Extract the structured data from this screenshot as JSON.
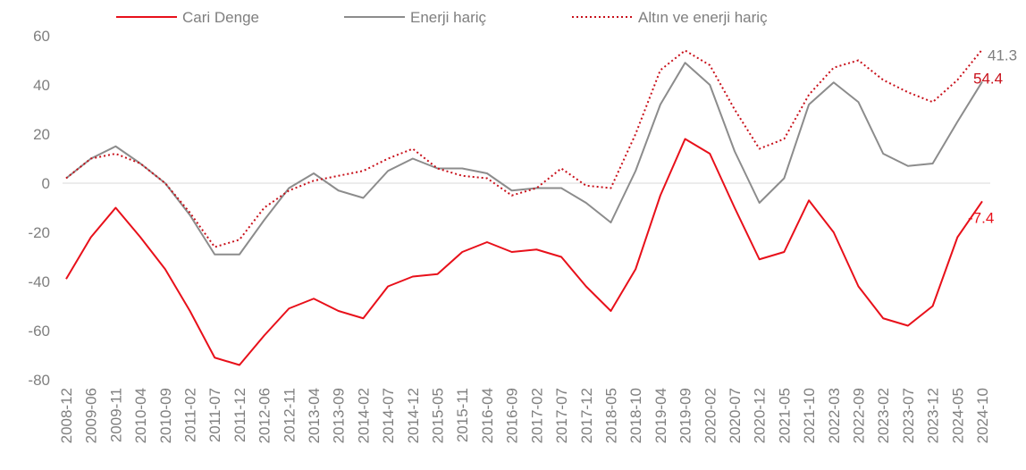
{
  "chart_data": {
    "type": "line",
    "categories": [
      "2008-12",
      "2009-06",
      "2009-11",
      "2010-04",
      "2010-09",
      "2011-02",
      "2011-07",
      "2011-12",
      "2012-06",
      "2012-11",
      "2013-04",
      "2013-09",
      "2014-02",
      "2014-07",
      "2014-12",
      "2015-05",
      "2015-11",
      "2016-04",
      "2016-09",
      "2017-02",
      "2017-07",
      "2017-12",
      "2018-05",
      "2018-10",
      "2019-04",
      "2019-09",
      "2020-02",
      "2020-07",
      "2020-12",
      "2021-05",
      "2021-10",
      "2022-03",
      "2022-09",
      "2023-02",
      "2023-07",
      "2023-12",
      "2024-05",
      "2024-10"
    ],
    "series": [
      {
        "name": "Cari Denge",
        "color": "#e8101a",
        "dash": "solid",
        "values": [
          -39,
          -22,
          -10,
          -22,
          -35,
          -52,
          -71,
          -74,
          -62,
          -51,
          -47,
          -52,
          -55,
          -42,
          -38,
          -37,
          -28,
          -24,
          -28,
          -27,
          -30,
          -42,
          -52,
          -35,
          -5,
          18,
          12,
          -10,
          -31,
          -28,
          -7,
          -20,
          -42,
          -55,
          -58,
          -50,
          -22,
          -7.4
        ]
      },
      {
        "name": "Enerji hariç",
        "color": "#8c8c8c",
        "dash": "solid",
        "values": [
          2,
          10,
          15,
          8,
          0,
          -13,
          -29,
          -29,
          -15,
          -2,
          4,
          -3,
          -6,
          5,
          10,
          6,
          6,
          4,
          -3,
          -2,
          -2,
          -8,
          -16,
          5,
          32,
          49,
          40,
          13,
          -8,
          2,
          32,
          41,
          33,
          12,
          7,
          8,
          25,
          41.3
        ]
      },
      {
        "name": "Altın ve enerji hariç",
        "color": "#c8101a",
        "dash": "dotted",
        "values": [
          2,
          10,
          12,
          8,
          0,
          -12,
          -26,
          -23,
          -10,
          -3,
          1,
          3,
          5,
          10,
          14,
          6,
          3,
          2,
          -5,
          -2,
          6,
          -1,
          -2,
          20,
          46,
          54,
          48,
          30,
          14,
          18,
          36,
          47,
          50,
          42,
          37,
          33,
          42,
          54.4
        ]
      }
    ],
    "ylim": [
      -80,
      60
    ],
    "yticks": [
      -80,
      -60,
      -40,
      -20,
      0,
      20,
      40,
      60
    ],
    "zero_line": true,
    "legend": "top"
  }
}
